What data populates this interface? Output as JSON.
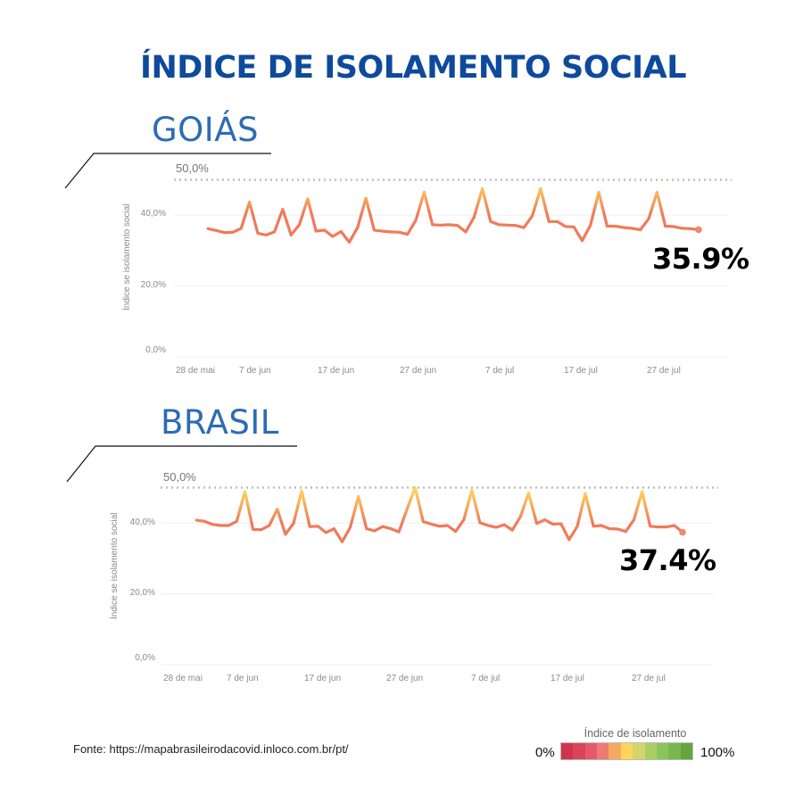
{
  "title": "ÍNDICE DE ISOLAMENTO SOCIAL",
  "source": "Fonte: https://mapabrasileirodacovid.inloco.com.br/pt/",
  "legend": {
    "title": "Índice de isolamento",
    "min_label": "0%",
    "max_label": "100%",
    "colors": [
      "#d0344d",
      "#d9445a",
      "#e45a6a",
      "#ef7a72",
      "#f6a864",
      "#fdd65a",
      "#d4d66a",
      "#aacf63",
      "#8cc45c",
      "#78b84f",
      "#63a63d"
    ]
  },
  "colors": {
    "title": "#0e4a9c",
    "region": "#2b6cb5",
    "line_low": "#f07a5a",
    "line_high": "#fdd35a"
  },
  "chart_data": [
    {
      "type": "line",
      "region": "GOIÁS",
      "current_value_label": "35.9%",
      "ylabel": "Índice se isolamento social",
      "reference_line": {
        "value": 50,
        "label": "50,0%"
      },
      "yticks": [
        {
          "value": 0,
          "label": "0,0%"
        },
        {
          "value": 20,
          "label": "20,0%"
        },
        {
          "value": 40,
          "label": "40,0%"
        }
      ],
      "xticks": [
        "28 de mai",
        "7 de jun",
        "17 de jun",
        "27 de jun",
        "7 de jul",
        "17 de jul",
        "27 de jul"
      ],
      "ylim": [
        0,
        50
      ],
      "grid": true,
      "values": [
        36.2,
        35.7,
        35.1,
        35.2,
        36.3,
        43.7,
        34.9,
        34.4,
        35.3,
        41.7,
        34.4,
        37.3,
        44.6,
        35.5,
        35.8,
        34.0,
        35.4,
        32.4,
        36.5,
        44.8,
        35.8,
        35.5,
        35.3,
        35.2,
        34.6,
        38.6,
        46.5,
        37.3,
        37.2,
        37.3,
        37.1,
        35.3,
        39.4,
        47.5,
        38.2,
        37.3,
        37.2,
        37.1,
        36.5,
        39.8,
        47.5,
        38.2,
        38.2,
        36.8,
        36.7,
        32.8,
        37.2,
        46.5,
        36.9,
        36.9,
        36.5,
        36.3,
        35.9,
        39.0,
        46.5,
        36.9,
        36.8,
        36.3,
        36.2,
        35.9
      ]
    },
    {
      "type": "line",
      "region": "BRASIL",
      "current_value_label": "37.4%",
      "ylabel": "Índice se isolamento social",
      "reference_line": {
        "value": 50,
        "label": "50,0%"
      },
      "yticks": [
        {
          "value": 0,
          "label": "0,0%"
        },
        {
          "value": 20,
          "label": "20,0%"
        },
        {
          "value": 40,
          "label": "40,0%"
        }
      ],
      "xticks": [
        "28 de mai",
        "7 de jun",
        "17 de jun",
        "27 de jun",
        "7 de jul",
        "17 de jul",
        "27 de jul"
      ],
      "ylim": [
        0,
        50
      ],
      "grid": true,
      "values": [
        40.8,
        40.5,
        39.6,
        39.3,
        39.3,
        40.5,
        48.9,
        38.2,
        38.1,
        39.3,
        43.9,
        36.8,
        39.9,
        49.1,
        39.0,
        39.1,
        37.3,
        38.4,
        34.7,
        38.8,
        47.5,
        38.4,
        37.8,
        39.0,
        38.4,
        37.5,
        43.9,
        50.0,
        40.4,
        39.7,
        39.1,
        39.3,
        37.6,
        40.9,
        49.3,
        40.1,
        39.3,
        38.8,
        39.5,
        38.0,
        41.8,
        48.5,
        39.9,
        40.9,
        39.7,
        39.8,
        35.3,
        39.0,
        48.3,
        39.1,
        39.3,
        38.4,
        38.3,
        37.6,
        40.9,
        48.9,
        39.1,
        38.9,
        38.9,
        39.3,
        37.4
      ]
    }
  ]
}
